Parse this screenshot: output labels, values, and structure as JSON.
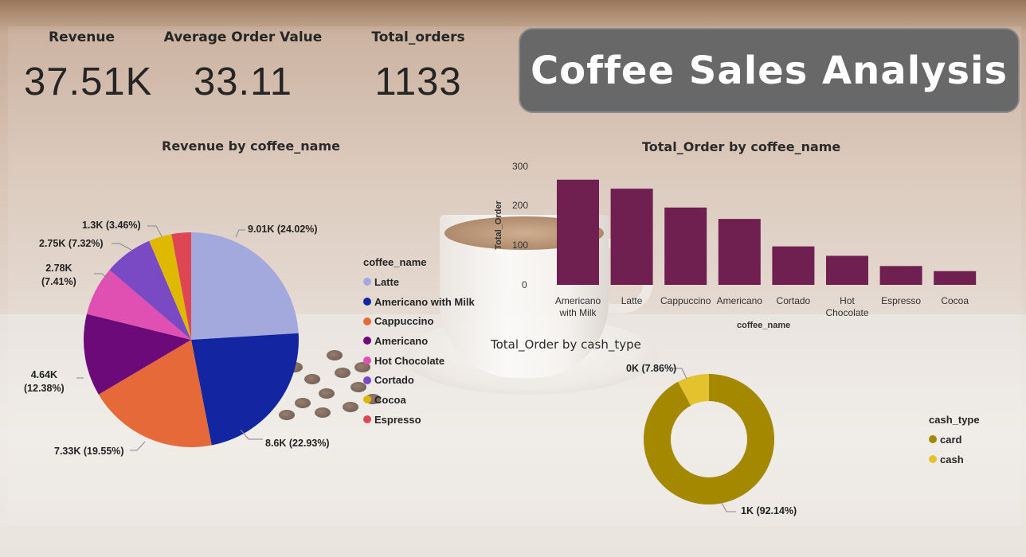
{
  "dashboard": {
    "title": "Coffee Sales Analysis",
    "kpis": [
      {
        "label": "Revenue",
        "value": "37.51K"
      },
      {
        "label": "Average Order Value",
        "value": "33.11"
      },
      {
        "label": "Total_orders",
        "value": "1133"
      }
    ]
  },
  "colors": {
    "title_box": "#686868",
    "bar": "#6f1f50",
    "donut_card": "#a38800",
    "donut_cash": "#e3c22e"
  },
  "pie": {
    "title": "Revenue by coffee_name",
    "legend_title": "coffee_name",
    "slices": [
      {
        "name": "Latte",
        "value": 9.01,
        "label": "9.01K (24.02%)",
        "color": "#a3a9dc"
      },
      {
        "name": "Americano with Milk",
        "value": 8.6,
        "label": "8.6K (22.93%)",
        "color": "#1325a0"
      },
      {
        "name": "Cappuccino",
        "value": 7.33,
        "label": "7.33K (19.55%)",
        "color": "#e66a39"
      },
      {
        "name": "Americano",
        "value": 4.64,
        "label_line1": "4.64K",
        "label_line2": "(12.38%)",
        "color": "#6b0a78"
      },
      {
        "name": "Hot Chocolate",
        "value": 2.78,
        "label_line1": "2.78K",
        "label_line2": "(7.41%)",
        "color": "#e04fb2"
      },
      {
        "name": "Cortado",
        "value": 2.75,
        "label": "2.75K (7.32%)",
        "color": "#7a4ac4"
      },
      {
        "name": "Cocoa",
        "value": 1.3,
        "label": "1.3K (3.46%)",
        "color": "#dfb900"
      },
      {
        "name": "Espresso",
        "value": 1.1,
        "label": "",
        "color": "#dd4652"
      }
    ]
  },
  "bar_chart": {
    "title": "Total_Order by coffee_name",
    "xlabel": "coffee_name",
    "ylabel": "Total_Order",
    "yticks": [
      "300",
      "200",
      "100",
      "0"
    ],
    "ylim": [
      0,
      300
    ],
    "categories": [
      {
        "line1": "Americano",
        "line2": "with Milk"
      },
      {
        "line1": "Latte",
        "line2": ""
      },
      {
        "line1": "Cappuccino",
        "line2": ""
      },
      {
        "line1": "Americano",
        "line2": ""
      },
      {
        "line1": "Cortado",
        "line2": ""
      },
      {
        "line1": "Hot",
        "line2": "Chocolate"
      },
      {
        "line1": "Espresso",
        "line2": ""
      },
      {
        "line1": "Cocoa",
        "line2": ""
      }
    ],
    "values": [
      268,
      245,
      197,
      168,
      98,
      74,
      48,
      35
    ]
  },
  "donut": {
    "title": "Total_Order by cash_type",
    "legend_title": "cash_type",
    "segments": [
      {
        "name": "card",
        "value": 92.14,
        "label": "1K (92.14%)"
      },
      {
        "name": "cash",
        "value": 7.86,
        "label": "0K (7.86%)"
      }
    ]
  },
  "chart_data": [
    {
      "type": "pie",
      "title": "Revenue by coffee_name",
      "categories": [
        "Latte",
        "Americano with Milk",
        "Cappuccino",
        "Americano",
        "Hot Chocolate",
        "Cortado",
        "Cocoa",
        "Espresso"
      ],
      "values": [
        9.01,
        8.6,
        7.33,
        4.64,
        2.78,
        2.75,
        1.3,
        1.1
      ],
      "legend_title": "coffee_name",
      "legend": "right"
    },
    {
      "type": "bar",
      "title": "Total_Order by coffee_name",
      "categories": [
        "Americano with Milk",
        "Latte",
        "Cappuccino",
        "Americano",
        "Cortado",
        "Hot Chocolate",
        "Espresso",
        "Cocoa"
      ],
      "values": [
        268,
        245,
        197,
        168,
        98,
        74,
        48,
        35
      ],
      "xlabel": "coffee_name",
      "ylabel": "Total_Order",
      "ylim": [
        0,
        300
      ],
      "grid": false
    },
    {
      "type": "pie",
      "title": "Total_Order by cash_type",
      "categories": [
        "card",
        "cash"
      ],
      "values": [
        92.14,
        7.86
      ],
      "legend_title": "cash_type",
      "legend": "right"
    }
  ]
}
